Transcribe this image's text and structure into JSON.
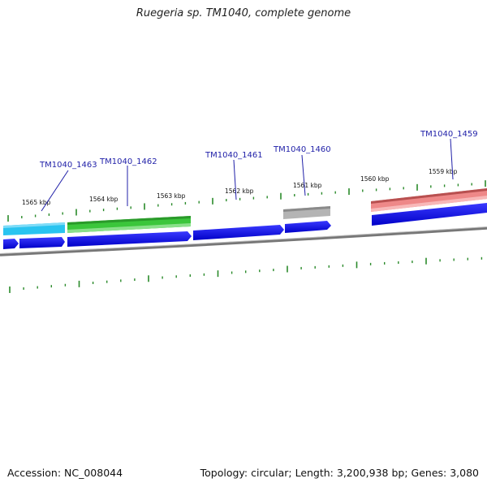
{
  "title": "Ruegeria sp. TM1040, complete genome",
  "footer": {
    "accession": "Accession: NC_008044",
    "summary": "Topology: circular; Length: 3,200,938 bp; Genes: 3,080"
  },
  "colors": {
    "backbone": "#8a8a8a",
    "tick": "#2a8a2a",
    "cds": "#1010e0",
    "label": "#1f1fa8"
  },
  "kbp_labels": [
    "1565 kbp",
    "1564 kbp",
    "1563 kbp",
    "1562 kbp",
    "1561 kbp",
    "1560 kbp",
    "1559 kbp"
  ],
  "genes": [
    {
      "id": "TM1040_1463",
      "color": "#29c4f0"
    },
    {
      "id": "TM1040_1462",
      "color": "#3bc63b"
    },
    {
      "id": "TM1040_1461",
      "color": "#1010e0"
    },
    {
      "id": "TM1040_1460",
      "color": "#a8a8a8"
    },
    {
      "id": "TM1040_1459",
      "color": "#ee8888"
    }
  ]
}
